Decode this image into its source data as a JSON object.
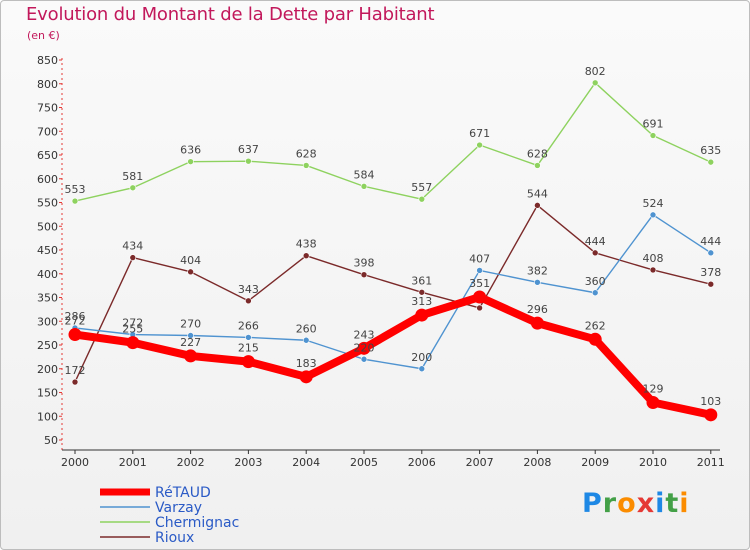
{
  "title": "Evolution du Montant de la Dette par Habitant",
  "unit": "(en €)",
  "logo": {
    "text": "Proxiti",
    "letters": [
      {
        "ch": "P",
        "color": "#1e88e5"
      },
      {
        "ch": "r",
        "color": "#43a047"
      },
      {
        "ch": "o",
        "color": "#fb8c00"
      },
      {
        "ch": "x",
        "color": "#e53935"
      },
      {
        "ch": "i",
        "color": "#1e88e5"
      },
      {
        "ch": "t",
        "color": "#43a047"
      },
      {
        "ch": "i",
        "color": "#fb8c00"
      }
    ]
  },
  "chart_data": {
    "type": "line",
    "title": "Evolution du Montant de la Dette par Habitant",
    "ylabel": "(en €)",
    "x": [
      "2000",
      "2001",
      "2002",
      "2003",
      "2004",
      "2005",
      "2006",
      "2007",
      "2008",
      "2009",
      "2010",
      "2011"
    ],
    "ylim": [
      50,
      850
    ],
    "yticks": [
      50,
      100,
      150,
      200,
      250,
      300,
      350,
      400,
      450,
      500,
      550,
      600,
      650,
      700,
      750,
      800,
      850
    ],
    "grid": false,
    "legend_position": "bottom-left",
    "series": [
      {
        "name": "Chermignac",
        "color": "#8ed25f",
        "values": [
          553,
          581,
          636,
          637,
          628,
          584,
          557,
          671,
          628,
          802,
          691,
          635
        ]
      },
      {
        "name": "Rioux",
        "color": "#7b2a2a",
        "values": [
          172,
          434,
          404,
          343,
          438,
          398,
          361,
          328,
          544,
          444,
          408,
          378
        ]
      },
      {
        "name": "Varzay",
        "color": "#4f93d0",
        "values": [
          286,
          272,
          270,
          266,
          260,
          220,
          200,
          407,
          382,
          360,
          524,
          444
        ]
      },
      {
        "name": "RéTAUD",
        "color": "#ff0000",
        "values": [
          272,
          255,
          227,
          215,
          183,
          243,
          313,
          351,
          296,
          262,
          129,
          103
        ]
      }
    ],
    "data_labels": [
      {
        "series": "Chermignac",
        "values": [
          "553",
          "581",
          "636",
          "637",
          "628",
          "584",
          "557",
          "671",
          "628",
          "802",
          "691",
          "635"
        ]
      },
      {
        "series": "Rioux",
        "values": [
          "172",
          "434",
          "404",
          "343",
          "438",
          "398",
          "361",
          "",
          "544",
          "444",
          "408",
          "378"
        ]
      },
      {
        "series": "Varzay",
        "values": [
          "286",
          "272",
          "270",
          "266",
          "260",
          "220",
          "200",
          "407",
          "382",
          "360",
          "524",
          "444"
        ]
      },
      {
        "series": "RéTAUD",
        "values": [
          "272",
          "255",
          "227",
          "215",
          "183",
          "243",
          "313",
          "351",
          "296",
          "262",
          "129",
          "103"
        ]
      }
    ],
    "legend_order": [
      "RéTAUD",
      "Varzay",
      "Chermignac",
      "Rioux"
    ]
  }
}
